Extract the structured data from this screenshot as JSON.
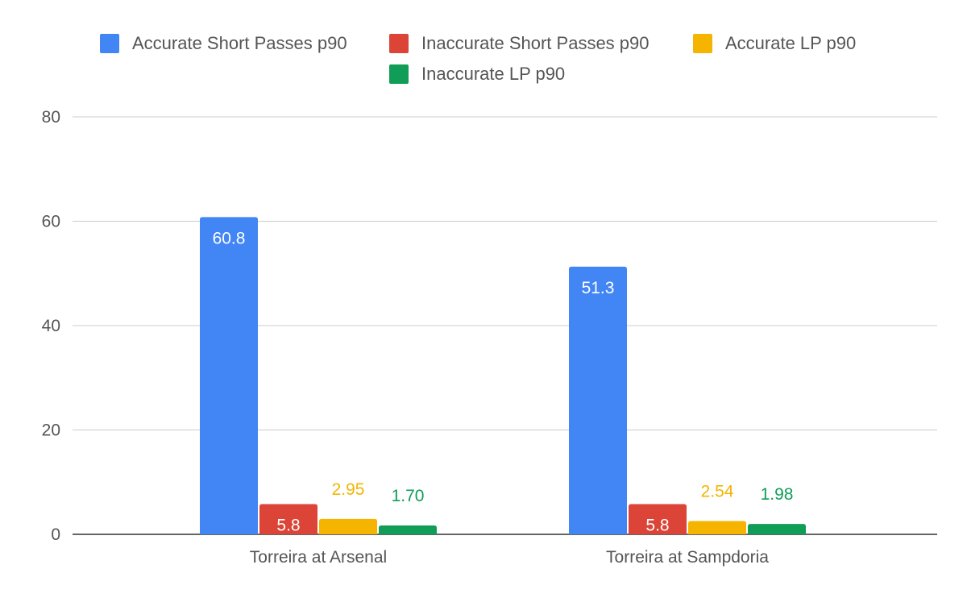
{
  "chart_data": {
    "type": "bar",
    "title": "",
    "xlabel": "",
    "ylabel": "",
    "categories": [
      "Torreira at Arsenal",
      "Torreira at Sampdoria"
    ],
    "series": [
      {
        "name": "Accurate Short Passes p90",
        "color": "#4285F4",
        "values": [
          60.8,
          51.3
        ],
        "labels": [
          "60.8",
          "51.3"
        ],
        "label_position": "inside"
      },
      {
        "name": "Inaccurate Short Passes p90",
        "color": "#DB4437",
        "values": [
          5.8,
          5.8
        ],
        "labels": [
          "5.8",
          "5.8"
        ],
        "label_position": "inside"
      },
      {
        "name": "Accurate LP p90",
        "color": "#F4B400",
        "values": [
          2.95,
          2.54
        ],
        "labels": [
          "2.95",
          "2.54"
        ],
        "label_position": "above"
      },
      {
        "name": "Inaccurate LP p90",
        "color": "#0F9D58",
        "values": [
          1.7,
          1.98
        ],
        "labels": [
          "1.70",
          "1.98"
        ],
        "label_position": "above"
      }
    ],
    "yticks": [
      "0",
      "20",
      "40",
      "60",
      "80"
    ],
    "ylim": [
      0,
      80
    ],
    "grid": true,
    "legend_position": "top"
  }
}
